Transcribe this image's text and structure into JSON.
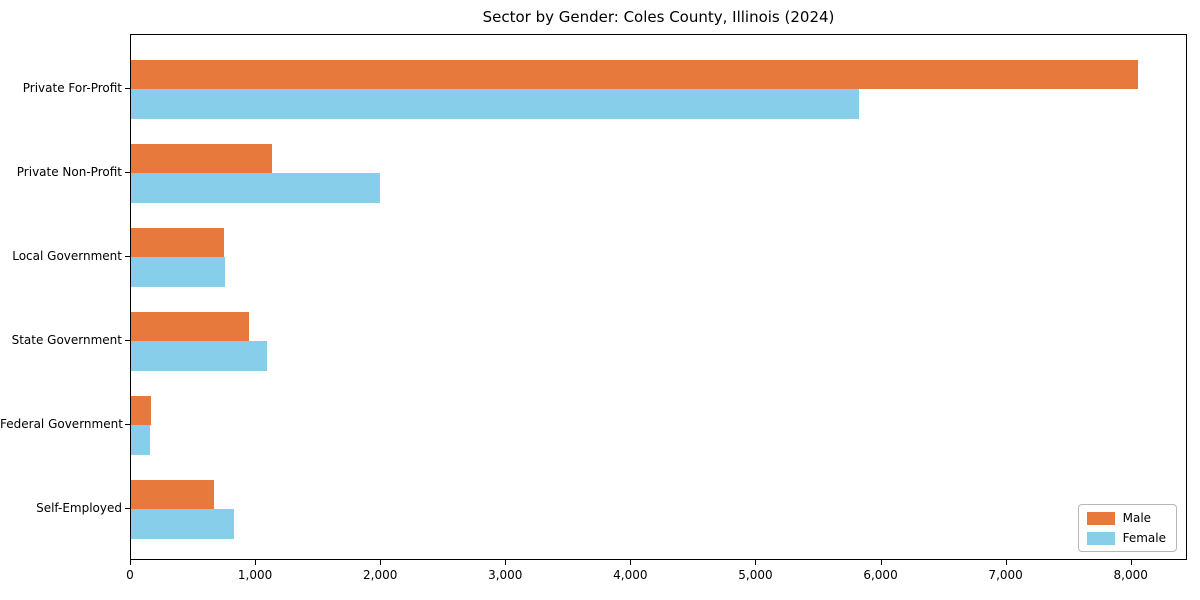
{
  "chart_data": {
    "type": "bar",
    "orientation": "horizontal",
    "title": "Sector by Gender: Coles County, Illinois (2024)",
    "categories": [
      "Private For-Profit",
      "Private Non-Profit",
      "Local Government",
      "State Government",
      "Federal Government",
      "Self-Employed"
    ],
    "series": [
      {
        "name": "Male",
        "color": "#e8793d",
        "values": [
          8050,
          1130,
          740,
          940,
          160,
          660
        ]
      },
      {
        "name": "Female",
        "color": "#87ceeb",
        "values": [
          5820,
          1990,
          750,
          1090,
          150,
          820
        ]
      }
    ],
    "xlabel": "",
    "ylabel": "",
    "xlim": [
      0,
      8450
    ],
    "xticks": [
      0,
      1000,
      2000,
      3000,
      4000,
      5000,
      6000,
      7000,
      8000
    ],
    "xtick_labels": [
      "0",
      "1,000",
      "2,000",
      "3,000",
      "4,000",
      "5,000",
      "6,000",
      "7,000",
      "8,000"
    ],
    "grid": false,
    "legend_position": "lower right",
    "background_color": "#ffffff",
    "spine_color": "#000000"
  }
}
